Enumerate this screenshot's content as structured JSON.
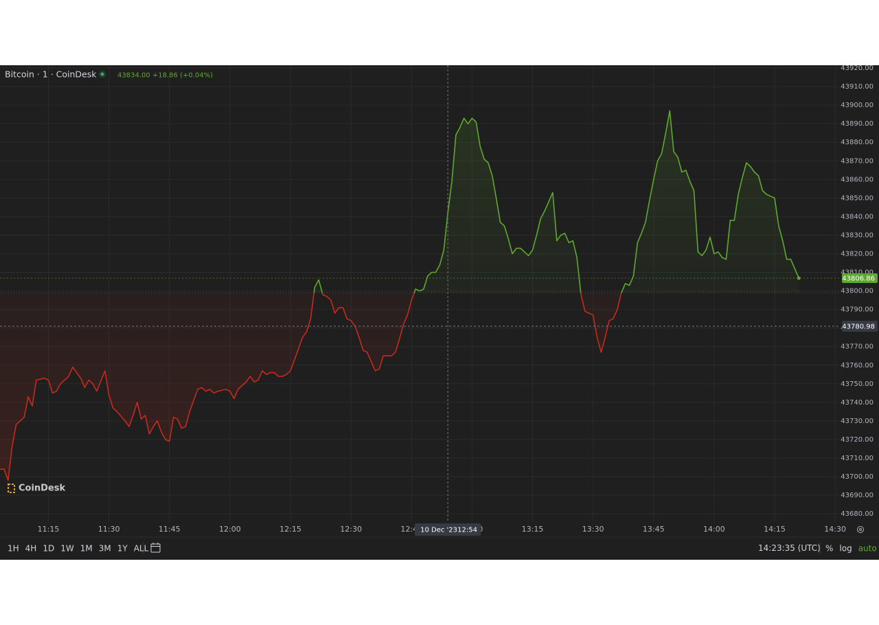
{
  "chart_data": {
    "type": "baseline-line",
    "series": [
      {
        "name": "Bitcoin · 1 · CoinDesk",
        "color_up": "#5fa82e",
        "color_down": "#c62a1c",
        "values": [
          43704,
          43704,
          43698,
          43716,
          43728,
          43732,
          43743,
          43738,
          43752,
          43753,
          43752,
          43745,
          43746,
          43750,
          43754,
          43759,
          43753,
          43748,
          43752,
          43750,
          43746,
          43757,
          43744,
          43737,
          43735,
          43730,
          43727,
          43733,
          43740,
          43731,
          43733,
          43723,
          43727,
          43730,
          43724,
          43720,
          43719,
          43732,
          43731,
          43726,
          43727,
          43735,
          43747,
          43748,
          43746,
          43747,
          43745,
          43746,
          43747,
          43746,
          43742,
          43747,
          43751,
          43754,
          43751,
          43752,
          43757,
          43755,
          43756,
          43756,
          43754,
          43754,
          43755,
          43757,
          43769,
          43775,
          43778,
          43785,
          43802,
          43806,
          43798,
          43797,
          43795,
          43788,
          43791,
          43791,
          43785,
          43784,
          43781,
          43775,
          43768,
          43767,
          43762,
          43757,
          43758,
          43765,
          43765,
          43765,
          43767,
          43774,
          43782,
          43787,
          43795,
          43801,
          43800,
          43801,
          43808,
          43810,
          43810,
          43814,
          43822,
          43842,
          43859,
          43884,
          43888,
          43893,
          43890,
          43893,
          43891,
          43878,
          43871,
          43869,
          43862,
          43850,
          43837,
          43835,
          43828,
          43820,
          43823,
          43823,
          43821,
          43819,
          43822,
          43830,
          43839,
          43843,
          43848,
          43853,
          43827,
          43830,
          43831,
          43826,
          43827,
          43818,
          43798,
          43789,
          43788,
          43787,
          43775,
          43767,
          43775,
          43784,
          43785,
          43790,
          43799,
          43804,
          43803,
          43808,
          43826,
          43831,
          43837,
          43849,
          43860,
          43870,
          43874,
          43885,
          43897,
          43875,
          43872,
          43864,
          43865,
          43859,
          43854,
          43821,
          43819,
          43822,
          43829,
          43820,
          43821,
          43818,
          43817,
          43838,
          43838,
          43852,
          43861,
          43869,
          43867,
          43864,
          43862,
          43854,
          43852,
          43851,
          43850,
          43835,
          43827,
          43817,
          43817,
          43806.86
        ]
      }
    ],
    "x": [
      "11:03",
      "11:04",
      "11:05",
      "11:06",
      "11:07",
      "11:09",
      "11:10",
      "11:11",
      "11:12",
      "11:14",
      "11:15",
      "11:16",
      "11:17",
      "11:18",
      "11:20",
      "11:21",
      "11:23",
      "11:24",
      "11:25",
      "11:26",
      "11:27",
      "11:29",
      "11:30",
      "11:31",
      "11:32",
      "11:34",
      "11:35",
      "11:36",
      "11:37",
      "11:38",
      "11:39",
      "11:40",
      "11:41",
      "11:42",
      "11:43",
      "11:44",
      "11:45",
      "11:46",
      "11:47",
      "11:48",
      "11:49",
      "11:50",
      "11:52",
      "11:53",
      "11:54",
      "11:55",
      "11:56",
      "11:57",
      "11:59",
      "12:00",
      "12:01",
      "12:02",
      "12:04",
      "12:05",
      "12:06",
      "12:07",
      "12:08",
      "12:09",
      "12:10",
      "12:11",
      "12:12",
      "12:13",
      "12:14",
      "12:15",
      "12:17",
      "12:18",
      "12:19",
      "12:20",
      "12:21",
      "12:22",
      "12:23",
      "12:24",
      "12:25",
      "12:26",
      "12:27",
      "12:28",
      "12:29",
      "12:30",
      "12:31",
      "12:32",
      "12:33",
      "12:34",
      "12:35",
      "12:36",
      "12:37",
      "12:38",
      "12:39",
      "12:40",
      "12:41",
      "12:42",
      "12:43",
      "12:44",
      "12:45",
      "12:46",
      "12:47",
      "12:48",
      "12:49",
      "12:50",
      "12:51",
      "12:52",
      "12:53",
      "12:54",
      "12:55",
      "12:56",
      "12:57",
      "12:58",
      "12:59",
      "13:00",
      "13:01",
      "13:02",
      "13:03",
      "13:04",
      "13:05",
      "13:06",
      "13:07",
      "13:08",
      "13:09",
      "13:10",
      "13:11",
      "13:12",
      "13:13",
      "13:14",
      "13:15",
      "13:16",
      "13:17",
      "13:18",
      "13:19",
      "13:20",
      "13:21",
      "13:22",
      "13:23",
      "13:24",
      "13:25",
      "13:26",
      "13:27",
      "13:28",
      "13:29",
      "13:30",
      "13:31",
      "13:32",
      "13:33",
      "13:34",
      "13:35",
      "13:36",
      "13:37",
      "13:38",
      "13:39",
      "13:40",
      "13:41",
      "13:42",
      "13:43",
      "13:44",
      "13:45",
      "13:46",
      "13:47",
      "13:48",
      "13:49",
      "13:50",
      "13:51",
      "13:52",
      "13:53",
      "13:54",
      "13:55",
      "13:56",
      "13:57",
      "13:58",
      "13:59",
      "14:00",
      "14:01",
      "14:02",
      "14:03",
      "14:04",
      "14:05",
      "14:06",
      "14:07",
      "14:08",
      "14:09",
      "14:10",
      "14:11",
      "14:12",
      "14:13",
      "14:14",
      "14:15",
      "14:16",
      "14:17",
      "14:18",
      "14:19",
      "14:21"
    ],
    "baseline": 43799,
    "xlim": [
      "11:03",
      "14:31"
    ],
    "xticks": [
      "11:15",
      "11:30",
      "11:45",
      "12:00",
      "12:15",
      "12:30",
      "12:45",
      "13:00",
      "13:15",
      "13:30",
      "13:45",
      "14:00",
      "14:15",
      "14:30"
    ],
    "ylim": [
      43675.6,
      43921.5
    ],
    "yticks": [
      {
        "value": 43680,
        "label": "43680.00"
      },
      {
        "value": 43690,
        "label": "43690.00"
      },
      {
        "value": 43700,
        "label": "43700.00"
      },
      {
        "value": 43710,
        "label": "43710.00"
      },
      {
        "value": 43720,
        "label": "43720.00"
      },
      {
        "value": 43730,
        "label": "43730.00"
      },
      {
        "value": 43740,
        "label": "43740.00"
      },
      {
        "value": 43750,
        "label": "43750.00"
      },
      {
        "value": 43760,
        "label": "43760.00"
      },
      {
        "value": 43770,
        "label": "43770.00"
      },
      {
        "value": 43780,
        "label": "43780.00"
      },
      {
        "value": 43790,
        "label": "43790.00"
      },
      {
        "value": 43800,
        "label": "43800.00"
      },
      {
        "value": 43810,
        "label": "43810.00"
      },
      {
        "value": 43820,
        "label": "43820.00"
      },
      {
        "value": 43830,
        "label": "43830.00"
      },
      {
        "value": 43840,
        "label": "43840.00"
      },
      {
        "value": 43850,
        "label": "43850.00"
      },
      {
        "value": 43860,
        "label": "43860.00"
      },
      {
        "value": 43870,
        "label": "43870.00"
      },
      {
        "value": 43880,
        "label": "43880.00"
      },
      {
        "value": 43890,
        "label": "43890.00"
      },
      {
        "value": 43900,
        "label": "43900.00"
      },
      {
        "value": 43910,
        "label": "43910.00"
      },
      {
        "value": 43920,
        "label": "43920.00"
      }
    ],
    "grid": true,
    "legend_values": "43834.00 +18.86 (+0.04%)",
    "crosshair": {
      "price": 43780.98,
      "date": "10 Dec '23",
      "time": "12:54"
    },
    "watermark": "CoinDesk",
    "ranges": [
      "1H",
      "4H",
      "1D",
      "1W",
      "1M",
      "3M",
      "1Y",
      "ALL"
    ],
    "clock": "14:23:35 (UTC)",
    "scale_options": [
      "%",
      "log",
      "auto"
    ]
  }
}
